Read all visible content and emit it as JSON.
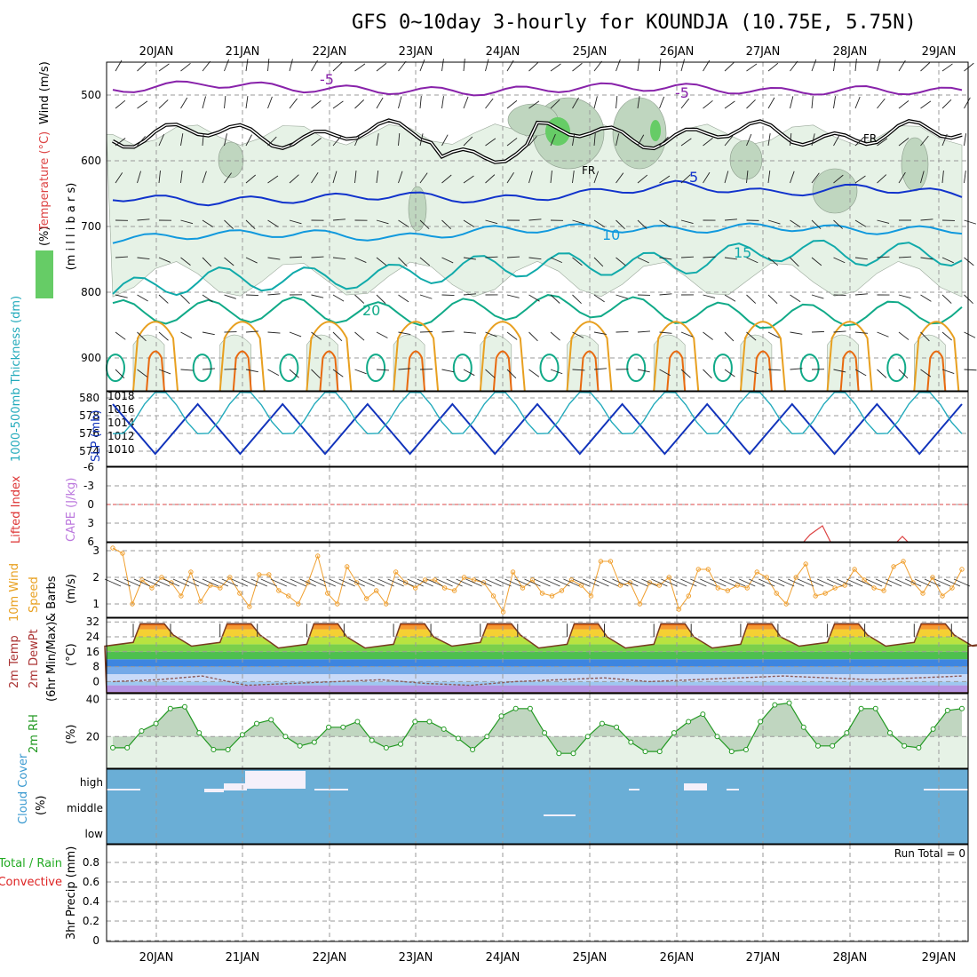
{
  "title": "GFS 0~10day 3-hourly for KOUNDJA (10.75E, 5.75N)",
  "dates": [
    "20JAN",
    "21JAN",
    "22JAN",
    "23JAN",
    "24JAN",
    "25JAN",
    "26JAN",
    "27JAN",
    "28JAN",
    "29JAN"
  ],
  "colors": {
    "rh_fill_light": "#e6f2e6",
    "rh_fill_mid": "#bfd6bf",
    "rh_fill_dark": "#9fbf9f",
    "rh_fill_sat": "#66cc66",
    "temp_m5": "#8822aa",
    "temp_5": "#1133cc",
    "temp_10": "#1199dd",
    "temp_15": "#11aaaa",
    "temp_20": "#11aa88",
    "temp_hot1": "#e8a020",
    "temp_hot2": "#e86a10",
    "freezing": "#000000",
    "thickness": "#1133bb",
    "slp": "#22aabb",
    "li_zero": "#dd4444",
    "wind10": "#f0a030",
    "dewpt": "#8a5a5a",
    "rh2m": "#229922",
    "cloud": "#6aaed6",
    "precip_total": "#22aa22",
    "precip_conv": "#dd2222"
  },
  "panels": {
    "upper": {
      "ylabel_m": "(m i l l i b a r s)",
      "legend_rh": "RH (%)",
      "legend_temp": "Temperature (°C)",
      "legend_wind": "Wind (m/s)",
      "yticks": [
        "500",
        "600",
        "700",
        "800",
        "900"
      ],
      "contour_labels": [
        "-5",
        "-5",
        "5",
        "10",
        "15",
        "20",
        "FR",
        "FR"
      ]
    },
    "thick": {
      "label_left": "1000-500mb Thickness (dm)",
      "label_right": "SLP (mb)",
      "yticks_left": [
        "580",
        "578",
        "576",
        "574"
      ],
      "yticks_right": [
        "1018",
        "1016",
        "1014",
        "1012",
        "1010"
      ]
    },
    "li": {
      "label_a": "Lifted Index",
      "label_b": "CAPE (J/kg)",
      "yticks": [
        "-6",
        "-3",
        "0",
        "3",
        "6"
      ]
    },
    "wind10": {
      "label_a": "10m Wind",
      "label_b": "Speed",
      "label_c": "& Barbs",
      "label_d": "(m/s)",
      "yticks": [
        "3",
        "2",
        "1"
      ]
    },
    "temp2m": {
      "label_a": "2m Temp",
      "label_b": "2m DewPt",
      "label_c": "(6hr Min/Max)",
      "label_d": "(°C)",
      "yticks": [
        "32",
        "24",
        "16",
        "8",
        "0"
      ]
    },
    "rh2m": {
      "label_a": "2m RH",
      "label_b": "(%)",
      "yticks": [
        "40",
        "20"
      ]
    },
    "cloud": {
      "label_a": "Cloud Cover",
      "label_b": "(%)",
      "levels": [
        "high",
        "middle",
        "low"
      ]
    },
    "precip": {
      "label_a": "Total / Rain",
      "label_b": "Convective",
      "label_c": "3hr Precip (mm)",
      "run_total": "Run Total = 0",
      "yticks": [
        "0.8",
        "0.6",
        "0.4",
        "0.2",
        "0"
      ]
    }
  },
  "chart_data": [
    {
      "type": "line",
      "name_ref": "temperature-contours",
      "x": [
        "20JAN",
        "21JAN",
        "22JAN",
        "23JAN",
        "24JAN",
        "25JAN",
        "26JAN",
        "27JAN",
        "28JAN",
        "29JAN"
      ],
      "ylim": [
        450,
        950
      ],
      "series": [
        {
          "name": "-5",
          "values": [
            492,
            482,
            490,
            493,
            495,
            488,
            488,
            495,
            492,
            495
          ]
        },
        {
          "name": "5",
          "values": [
            655,
            662,
            658,
            652,
            660,
            650,
            636,
            650,
            640,
            652
          ]
        },
        {
          "name": "10",
          "values": [
            720,
            712,
            710,
            718,
            705,
            702,
            705,
            700,
            706,
            705
          ]
        },
        {
          "name": "15",
          "values": [
            800,
            780,
            780,
            775,
            760,
            757,
            757,
            735,
            742,
            742
          ]
        },
        {
          "name": "20",
          "values": [
            830,
            830,
            825,
            835,
            825,
            820,
            830,
            838,
            832,
            830
          ]
        }
      ]
    },
    {
      "type": "line",
      "name_ref": "thickness-slp",
      "x": [
        "20JAN",
        "21JAN",
        "22JAN",
        "23JAN",
        "24JAN",
        "25JAN",
        "26JAN",
        "27JAN",
        "28JAN",
        "29JAN"
      ],
      "series": [
        {
          "name": "thickness",
          "min": [
            574,
            574,
            574,
            574,
            574,
            574,
            574,
            574,
            574,
            574
          ],
          "max": [
            579,
            579,
            579,
            579,
            579,
            579,
            579,
            579,
            579,
            578
          ]
        },
        {
          "name": "slp",
          "max": [
            1016,
            1015,
            1016,
            1016,
            1016,
            1016,
            1017,
            1017,
            1017,
            1017
          ],
          "min": [
            1010,
            1009,
            1011,
            1011,
            1010,
            1011,
            1011,
            1011,
            1012,
            1012
          ]
        }
      ],
      "ylim_left": [
        573,
        580
      ],
      "ylim_right": [
        1009,
        1018
      ]
    },
    {
      "type": "line",
      "name_ref": "lifted-index",
      "ylim": [
        -6,
        6
      ],
      "series": [
        {
          "name": "LI",
          "values": [
            6,
            6,
            6,
            6,
            6,
            6,
            6,
            6,
            3.6,
            5.5
          ]
        }
      ]
    },
    {
      "type": "line",
      "name_ref": "wind10m",
      "ylim": [
        0.5,
        3.3
      ],
      "series": [
        {
          "name": "speed",
          "values": [
            3.1,
            2.9,
            1.0,
            1.9,
            1.6,
            2.0,
            1.8,
            1.3,
            2.2,
            1.1,
            1.7,
            1.6,
            2.0,
            1.4,
            0.9,
            2.1,
            2.1,
            1.5,
            1.3,
            1.0,
            1.8,
            2.8,
            1.4,
            1.0,
            2.4,
            1.8,
            1.2,
            1.5,
            1.0,
            2.2,
            1.8,
            1.6,
            1.9,
            1.9,
            1.6,
            1.5,
            2.0,
            1.9,
            1.8,
            1.3,
            0.7,
            2.2,
            1.6,
            1.9,
            1.4,
            1.3,
            1.5,
            1.9,
            1.7,
            1.3,
            2.6,
            2.6,
            1.7,
            1.8,
            1.0,
            1.8,
            1.7,
            2.0,
            0.8,
            1.3,
            2.3,
            2.3,
            1.6,
            1.5,
            1.7,
            1.6,
            2.2,
            2.0,
            1.4,
            1.0,
            2.0,
            2.5,
            1.3,
            1.4,
            1.6,
            1.7,
            2.3,
            1.9,
            1.6,
            1.5,
            2.4,
            2.6,
            1.8,
            1.4,
            2.0,
            1.3,
            1.6,
            2.3
          ]
        }
      ]
    },
    {
      "type": "area",
      "name_ref": "temp2m",
      "ylim": [
        -6,
        34
      ],
      "series": [
        {
          "name": "temp",
          "max": [
            31,
            31,
            31,
            31,
            31,
            31,
            31,
            31,
            31,
            31
          ],
          "min": [
            19,
            19,
            18,
            18,
            19,
            18,
            18,
            18,
            19,
            19
          ]
        },
        {
          "name": "dewpt",
          "values": [
            0,
            1,
            3,
            -2,
            -1,
            0,
            1,
            -1,
            -2,
            0,
            1,
            2,
            0,
            1,
            2,
            3,
            2,
            1,
            2,
            3
          ]
        }
      ]
    },
    {
      "type": "area",
      "name_ref": "rh2m",
      "ylim": [
        3,
        43
      ],
      "series": [
        {
          "name": "rh",
          "values": [
            14,
            14,
            23,
            27,
            35,
            36,
            22,
            13,
            13,
            21,
            27,
            29,
            20,
            15,
            17,
            25,
            25,
            28,
            18,
            14,
            16,
            28,
            28,
            24,
            19,
            13,
            20,
            31,
            35,
            35,
            22,
            11,
            11,
            20,
            27,
            25,
            17,
            12,
            12,
            22,
            28,
            32,
            20,
            12,
            13,
            28,
            37,
            38,
            25,
            15,
            15,
            22,
            35,
            35,
            22,
            15,
            14,
            24,
            34,
            35
          ]
        }
      ]
    },
    {
      "type": "bar",
      "name_ref": "cloud-cover",
      "series": [
        {
          "name": "cloud",
          "values": [
            0,
            0,
            0,
            0,
            0,
            0,
            0,
            0,
            0,
            0
          ]
        }
      ]
    },
    {
      "type": "bar",
      "name_ref": "precip3hr",
      "ylim": [
        0,
        0.9
      ],
      "series": [
        {
          "name": "precip",
          "values": [
            0,
            0,
            0,
            0,
            0,
            0,
            0,
            0,
            0,
            0
          ]
        }
      ]
    }
  ]
}
